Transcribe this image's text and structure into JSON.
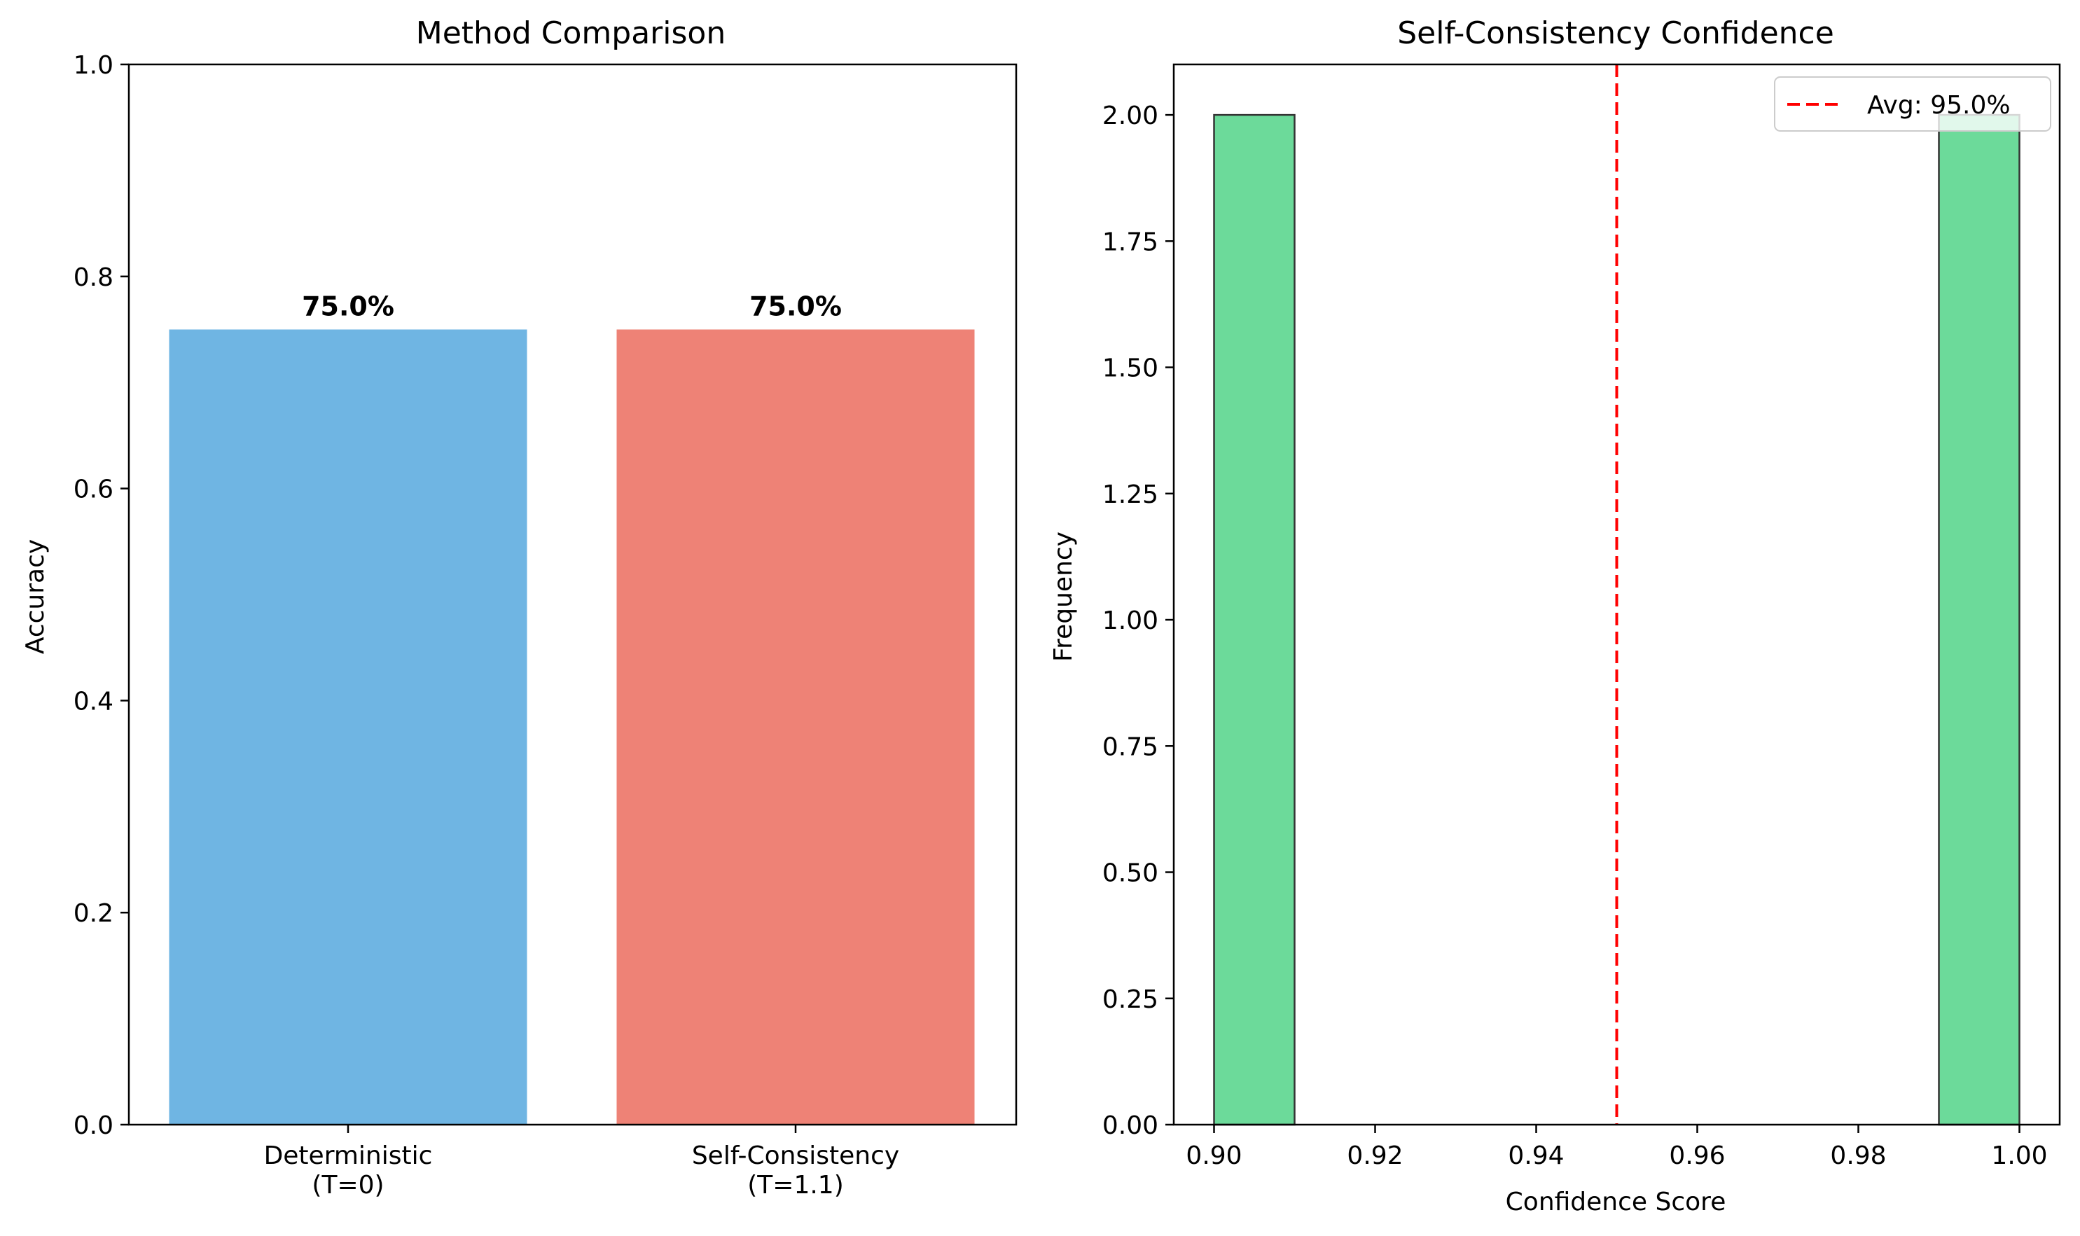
{
  "chart_data": [
    {
      "type": "bar",
      "title": "Method Comparison",
      "xlabel": "",
      "ylabel": "Accuracy",
      "ylim": [
        0,
        1.0
      ],
      "yticks": [
        "0.0",
        "0.2",
        "0.4",
        "0.6",
        "0.8",
        "1.0"
      ],
      "categories": [
        [
          "Deterministic",
          "(T=0)"
        ],
        [
          "Self-Consistency",
          "(T=1.1)"
        ]
      ],
      "values": [
        0.75,
        0.75
      ],
      "value_labels": [
        "75.0%",
        "75.0%"
      ],
      "colors": [
        "#6fb5e3",
        "#ee8276"
      ],
      "grid": false
    },
    {
      "type": "bar",
      "subtype": "histogram",
      "title": "Self-Consistency Confidence",
      "xlabel": "Confidence Score",
      "ylabel": "Frequency",
      "xlim": [
        0.895,
        1.005
      ],
      "ylim": [
        0,
        2.1
      ],
      "xticks": [
        "0.90",
        "0.92",
        "0.94",
        "0.96",
        "0.98",
        "1.00"
      ],
      "yticks": [
        "0.00",
        "0.25",
        "0.50",
        "0.75",
        "1.00",
        "1.25",
        "1.50",
        "1.75",
        "2.00"
      ],
      "bins": [
        {
          "x0": 0.9,
          "x1": 0.91,
          "count": 2
        },
        {
          "x0": 0.99,
          "x1": 1.0,
          "count": 2
        }
      ],
      "bar_color": "#6cda9a",
      "reference_line": {
        "x": 0.95,
        "label": "Avg: 95.0%",
        "color": "#ff0000",
        "style": "dashed"
      },
      "legend_position": "top-right",
      "grid": false
    }
  ]
}
